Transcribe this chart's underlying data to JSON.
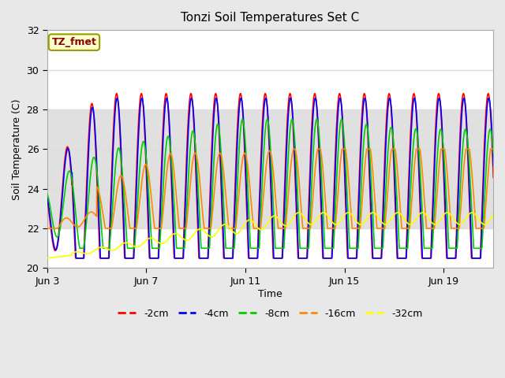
{
  "title": "Tonzi Soil Temperatures Set C",
  "xlabel": "Time",
  "ylabel": "Soil Temperature (C)",
  "legend_label": "TZ_fmet",
  "ylim": [
    20,
    32
  ],
  "series_labels": [
    "-2cm",
    "-4cm",
    "-8cm",
    "-16cm",
    "-32cm"
  ],
  "series_colors": [
    "#ff0000",
    "#0000ff",
    "#00cc00",
    "#ff8800",
    "#ffff00"
  ],
  "series_linewidths": [
    1.2,
    1.2,
    1.2,
    1.2,
    1.2
  ],
  "bg_color": "#e8e8e8",
  "plot_bg_color": "#ffffff",
  "xticks": [
    3,
    7,
    11,
    15,
    19
  ],
  "xtick_labels": [
    "Jun 3",
    "Jun 7",
    "Jun 11",
    "Jun 15",
    "Jun 19"
  ],
  "yticks": [
    20,
    22,
    24,
    26,
    28,
    30,
    32
  ],
  "grid_color": "#dddddd",
  "band_low": 22,
  "band_high": 28,
  "band_color": "#e0e0e0",
  "n_days": 19,
  "start_day": 3
}
